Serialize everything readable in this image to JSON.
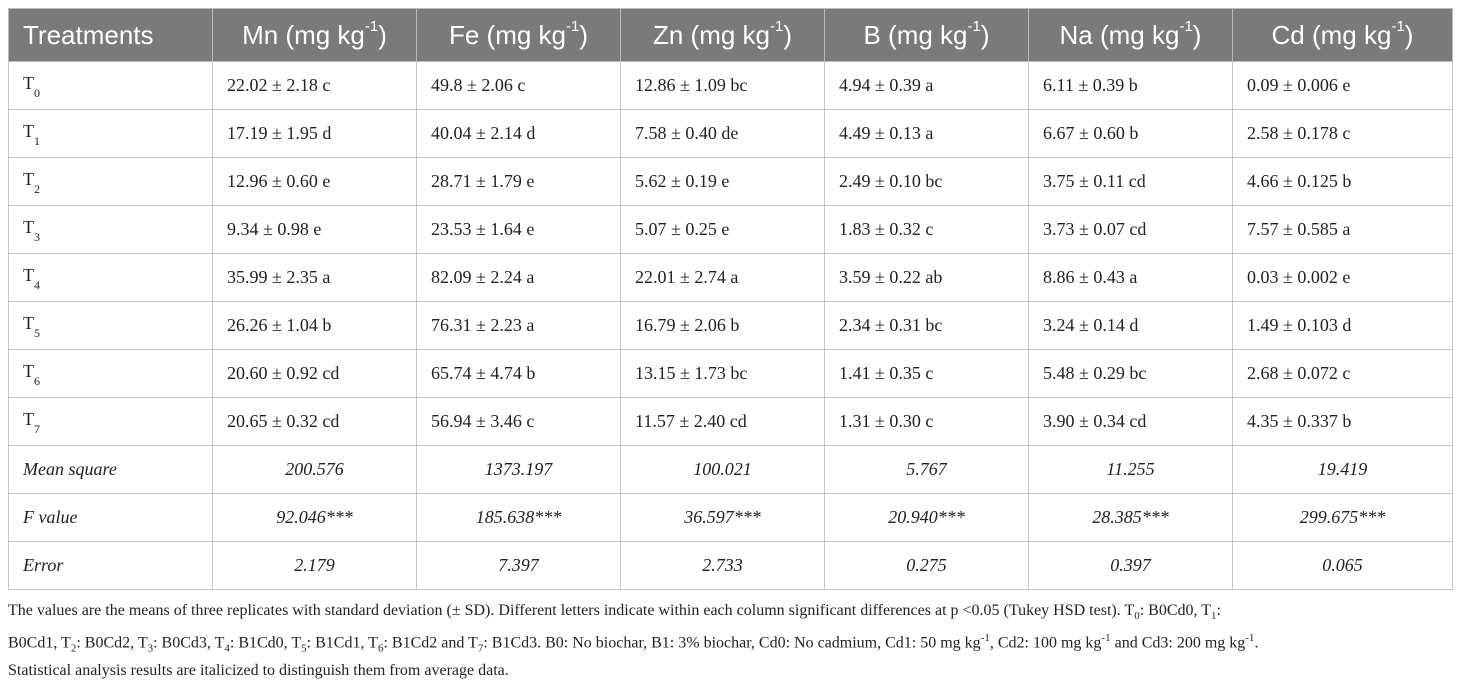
{
  "table": {
    "headers": [
      {
        "base": "Treatments",
        "sup": ""
      },
      {
        "base": "Mn (mg kg",
        "sup": "-1",
        "tail": ")"
      },
      {
        "base": "Fe (mg kg",
        "sup": "-1",
        "tail": ")"
      },
      {
        "base": "Zn (mg kg",
        "sup": "-1",
        "tail": ")"
      },
      {
        "base": "B (mg kg",
        "sup": "-1",
        "tail": ")"
      },
      {
        "base": "Na (mg kg",
        "sup": "-1",
        "tail": ")"
      },
      {
        "base": "Cd (mg kg",
        "sup": "-1",
        "tail": ")"
      }
    ],
    "rows": [
      {
        "label": "T",
        "sub": "0",
        "cells": [
          "22.02 ± 2.18 c",
          "49.8 ± 2.06 c",
          "12.86 ± 1.09 bc",
          "4.94 ± 0.39 a",
          "6.11 ± 0.39 b",
          "0.09 ± 0.006 e"
        ]
      },
      {
        "label": "T",
        "sub": "1",
        "cells": [
          "17.19 ± 1.95 d",
          "40.04 ± 2.14 d",
          "7.58 ± 0.40 de",
          "4.49 ± 0.13 a",
          "6.67 ± 0.60 b",
          "2.58 ± 0.178 c"
        ]
      },
      {
        "label": "T",
        "sub": "2",
        "cells": [
          "12.96 ± 0.60 e",
          "28.71 ± 1.79 e",
          "5.62 ± 0.19 e",
          "2.49 ± 0.10 bc",
          "3.75 ± 0.11 cd",
          "4.66 ± 0.125 b"
        ]
      },
      {
        "label": "T",
        "sub": "3",
        "cells": [
          "9.34 ± 0.98 e",
          "23.53 ± 1.64 e",
          "5.07 ± 0.25 e",
          "1.83 ± 0.32 c",
          "3.73 ± 0.07 cd",
          "7.57 ± 0.585 a"
        ]
      },
      {
        "label": "T",
        "sub": "4",
        "cells": [
          "35.99 ± 2.35 a",
          "82.09 ± 2.24 a",
          "22.01 ± 2.74 a",
          "3.59 ± 0.22 ab",
          "8.86 ± 0.43 a",
          "0.03 ± 0.002 e"
        ]
      },
      {
        "label": "T",
        "sub": "5",
        "cells": [
          "26.26 ± 1.04 b",
          "76.31 ± 2.23 a",
          "16.79 ± 2.06 b",
          "2.34 ± 0.31 bc",
          "3.24 ± 0.14 d",
          "1.49 ± 0.103 d"
        ]
      },
      {
        "label": "T",
        "sub": "6",
        "cells": [
          "20.60 ± 0.92 cd",
          "65.74 ± 4.74 b",
          "13.15 ± 1.73 bc",
          "1.41 ± 0.35 c",
          "5.48 ± 0.29 bc",
          "2.68 ± 0.072 c"
        ]
      },
      {
        "label": "T",
        "sub": "7",
        "cells": [
          "20.65 ± 0.32 cd",
          "56.94 ± 3.46 c",
          "11.57 ± 2.40 cd",
          "1.31 ± 0.30 c",
          "3.90 ± 0.34 cd",
          "4.35 ± 0.337 b"
        ]
      }
    ],
    "stat_rows": [
      {
        "label": "Mean square",
        "cells": [
          "200.576",
          "1373.197",
          "100.021",
          "5.767",
          "11.255",
          "19.419"
        ]
      },
      {
        "label": "F value",
        "cells": [
          "92.046***",
          "185.638***",
          "36.597***",
          "20.940***",
          "28.385***",
          "299.675***"
        ]
      },
      {
        "label": "Error",
        "cells": [
          "2.179",
          "7.397",
          "2.733",
          "0.275",
          "0.397",
          "0.065"
        ]
      }
    ]
  },
  "footnote": {
    "line1_a": "The values are the means of three replicates with standard deviation (± SD). Different letters indicate within each column significant differences at p <0.05 (Tukey HSD test). T",
    "t0": ": B0Cd0, T",
    "t1": ": ",
    "line2_start": "B0Cd1, T",
    "t2": ": B0Cd2, T",
    "t3": ": B0Cd3, T",
    "t4": ": B1Cd0, T",
    "t5": ": B1Cd1, T",
    "t6": ": B1Cd2 and T",
    "t7": ": B1Cd3. B0: No biochar, B1: 3% biochar, Cd0: No cadmium, Cd1: 50 mg kg",
    "cd1_tail": ", Cd2: 100 mg kg",
    "cd2_tail": " and Cd3: 200 mg kg",
    "cd3_tail": ".",
    "line3": "Statistical analysis results are italicized to distinguish them from average data."
  }
}
